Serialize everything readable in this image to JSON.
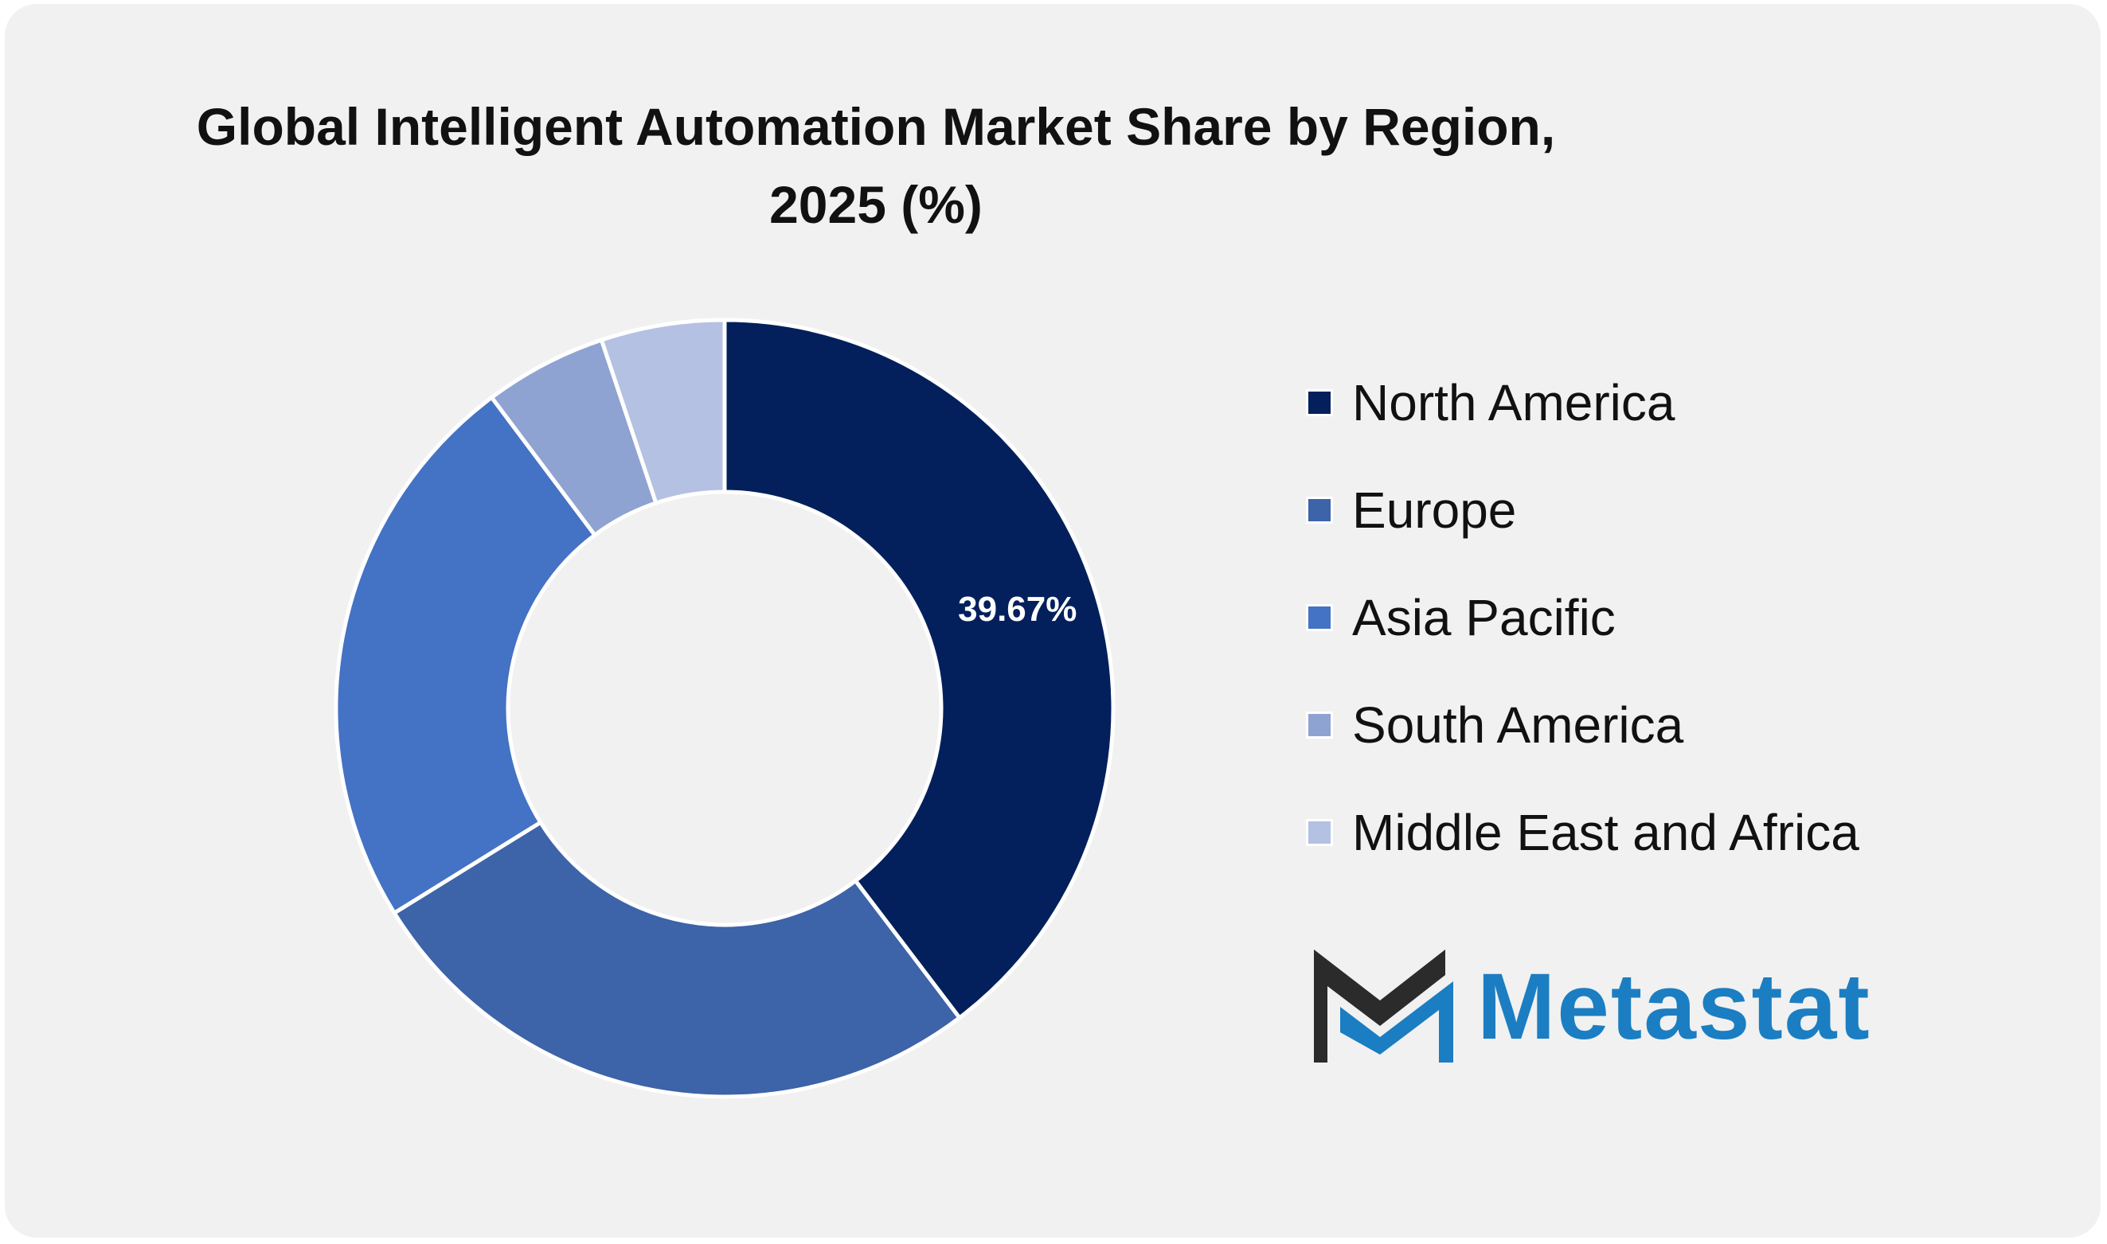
{
  "chart_data": {
    "type": "pie",
    "title_lines": [
      "Global Intelligent Automation Market Share by Region,",
      "2025 (%)"
    ],
    "categories": [
      "North America",
      "Europe",
      "Asia Pacific",
      "South America",
      "Middle East and Africa"
    ],
    "values": [
      39.67,
      26.5,
      23.6,
      5.1,
      5.13
    ],
    "colors": [
      "#03205c",
      "#3d63a8",
      "#4472c4",
      "#8ea3d2",
      "#b4c1e2"
    ],
    "data_labels": [
      "39.67%",
      "",
      "",
      "",
      ""
    ],
    "donut": true,
    "legend_position": "right"
  },
  "brand": {
    "name": "Metastat",
    "color": "#1b7ec2",
    "icon": "metastat-logo-icon"
  }
}
